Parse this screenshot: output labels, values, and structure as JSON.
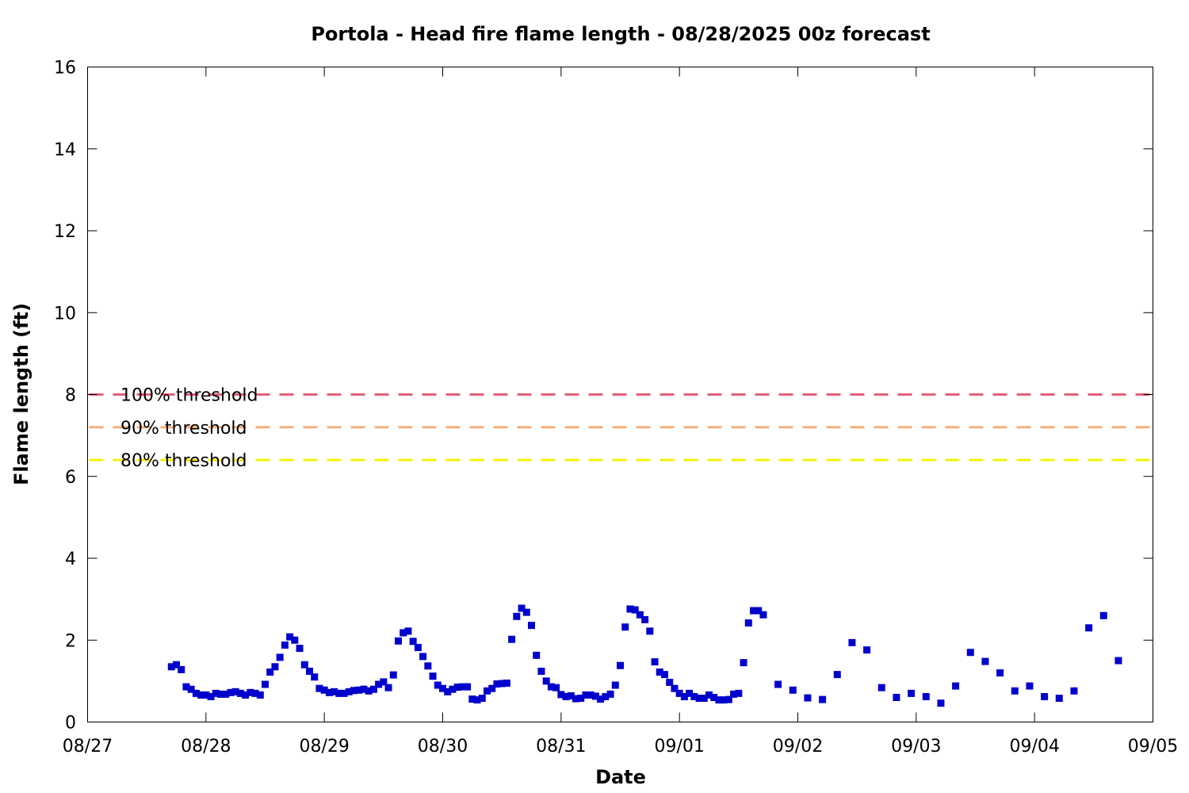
{
  "chart_data": {
    "type": "scatter",
    "title": "Portola - Head fire flame length - 08/28/2025 00z forecast",
    "xlabel": "Date",
    "ylabel": "Flame length (ft)",
    "xlim": [
      "08/27",
      "09/05"
    ],
    "ylim": [
      0,
      16
    ],
    "x_ticks": [
      "08/27",
      "08/28",
      "08/29",
      "08/30",
      "08/31",
      "09/01",
      "09/02",
      "09/03",
      "09/04",
      "09/05"
    ],
    "y_ticks": [
      0,
      2,
      4,
      6,
      8,
      10,
      12,
      14,
      16
    ],
    "grid": false,
    "thresholds": [
      {
        "label": "100% threshold",
        "value": 8.0,
        "color": "#e06278"
      },
      {
        "label": "90% threshold",
        "value": 7.2,
        "color": "#f4b07c"
      },
      {
        "label": "80% threshold",
        "value": 6.4,
        "color": "#f2f20a"
      }
    ],
    "series": [
      {
        "color": "#0000cc",
        "marker": "square",
        "points": [
          [
            "2025-08-27 17:00",
            1.35
          ],
          [
            "2025-08-27 18:00",
            1.4
          ],
          [
            "2025-08-27 19:00",
            1.28
          ],
          [
            "2025-08-27 20:00",
            0.86
          ],
          [
            "2025-08-27 21:00",
            0.8
          ],
          [
            "2025-08-27 22:00",
            0.7
          ],
          [
            "2025-08-27 23:00",
            0.66
          ],
          [
            "2025-08-28 00:00",
            0.66
          ],
          [
            "2025-08-28 01:00",
            0.62
          ],
          [
            "2025-08-28 02:00",
            0.7
          ],
          [
            "2025-08-28 03:00",
            0.68
          ],
          [
            "2025-08-28 04:00",
            0.68
          ],
          [
            "2025-08-28 05:00",
            0.72
          ],
          [
            "2025-08-28 06:00",
            0.74
          ],
          [
            "2025-08-28 07:00",
            0.7
          ],
          [
            "2025-08-28 08:00",
            0.66
          ],
          [
            "2025-08-28 09:00",
            0.72
          ],
          [
            "2025-08-28 10:00",
            0.7
          ],
          [
            "2025-08-28 11:00",
            0.66
          ],
          [
            "2025-08-28 12:00",
            0.92
          ],
          [
            "2025-08-28 13:00",
            1.22
          ],
          [
            "2025-08-28 14:00",
            1.35
          ],
          [
            "2025-08-28 15:00",
            1.58
          ],
          [
            "2025-08-28 16:00",
            1.88
          ],
          [
            "2025-08-28 17:00",
            2.08
          ],
          [
            "2025-08-28 18:00",
            2.0
          ],
          [
            "2025-08-28 19:00",
            1.8
          ],
          [
            "2025-08-28 20:00",
            1.4
          ],
          [
            "2025-08-28 21:00",
            1.24
          ],
          [
            "2025-08-28 22:00",
            1.1
          ],
          [
            "2025-08-28 23:00",
            0.82
          ],
          [
            "2025-08-29 00:00",
            0.78
          ],
          [
            "2025-08-29 01:00",
            0.72
          ],
          [
            "2025-08-29 02:00",
            0.74
          ],
          [
            "2025-08-29 03:00",
            0.7
          ],
          [
            "2025-08-29 04:00",
            0.7
          ],
          [
            "2025-08-29 05:00",
            0.74
          ],
          [
            "2025-08-29 06:00",
            0.77
          ],
          [
            "2025-08-29 07:00",
            0.78
          ],
          [
            "2025-08-29 08:00",
            0.8
          ],
          [
            "2025-08-29 09:00",
            0.76
          ],
          [
            "2025-08-29 10:00",
            0.8
          ],
          [
            "2025-08-29 11:00",
            0.92
          ],
          [
            "2025-08-29 12:00",
            0.98
          ],
          [
            "2025-08-29 13:00",
            0.84
          ],
          [
            "2025-08-29 14:00",
            1.15
          ],
          [
            "2025-08-29 15:00",
            1.98
          ],
          [
            "2025-08-29 16:00",
            2.18
          ],
          [
            "2025-08-29 17:00",
            2.22
          ],
          [
            "2025-08-29 18:00",
            1.97
          ],
          [
            "2025-08-29 19:00",
            1.82
          ],
          [
            "2025-08-29 20:00",
            1.6
          ],
          [
            "2025-08-29 21:00",
            1.37
          ],
          [
            "2025-08-29 22:00",
            1.12
          ],
          [
            "2025-08-29 23:00",
            0.9
          ],
          [
            "2025-08-30 00:00",
            0.82
          ],
          [
            "2025-08-30 01:00",
            0.74
          ],
          [
            "2025-08-30 02:00",
            0.8
          ],
          [
            "2025-08-30 03:00",
            0.85
          ],
          [
            "2025-08-30 04:00",
            0.86
          ],
          [
            "2025-08-30 05:00",
            0.86
          ],
          [
            "2025-08-30 06:00",
            0.56
          ],
          [
            "2025-08-30 07:00",
            0.54
          ],
          [
            "2025-08-30 08:00",
            0.58
          ],
          [
            "2025-08-30 09:00",
            0.76
          ],
          [
            "2025-08-30 10:00",
            0.82
          ],
          [
            "2025-08-30 11:00",
            0.93
          ],
          [
            "2025-08-30 12:00",
            0.94
          ],
          [
            "2025-08-30 13:00",
            0.95
          ],
          [
            "2025-08-30 14:00",
            2.02
          ],
          [
            "2025-08-30 15:00",
            2.58
          ],
          [
            "2025-08-30 16:00",
            2.78
          ],
          [
            "2025-08-30 17:00",
            2.68
          ],
          [
            "2025-08-30 18:00",
            2.36
          ],
          [
            "2025-08-30 19:00",
            1.63
          ],
          [
            "2025-08-30 20:00",
            1.24
          ],
          [
            "2025-08-30 21:00",
            1.0
          ],
          [
            "2025-08-30 22:00",
            0.86
          ],
          [
            "2025-08-30 23:00",
            0.84
          ],
          [
            "2025-08-31 00:00",
            0.67
          ],
          [
            "2025-08-31 01:00",
            0.62
          ],
          [
            "2025-08-31 02:00",
            0.64
          ],
          [
            "2025-08-31 03:00",
            0.57
          ],
          [
            "2025-08-31 04:00",
            0.58
          ],
          [
            "2025-08-31 05:00",
            0.66
          ],
          [
            "2025-08-31 06:00",
            0.66
          ],
          [
            "2025-08-31 07:00",
            0.63
          ],
          [
            "2025-08-31 08:00",
            0.56
          ],
          [
            "2025-08-31 09:00",
            0.62
          ],
          [
            "2025-08-31 10:00",
            0.68
          ],
          [
            "2025-08-31 11:00",
            0.9
          ],
          [
            "2025-08-31 12:00",
            1.38
          ],
          [
            "2025-08-31 13:00",
            2.32
          ],
          [
            "2025-08-31 14:00",
            2.76
          ],
          [
            "2025-08-31 15:00",
            2.74
          ],
          [
            "2025-08-31 16:00",
            2.62
          ],
          [
            "2025-08-31 17:00",
            2.5
          ],
          [
            "2025-08-31 18:00",
            2.22
          ],
          [
            "2025-08-31 19:00",
            1.47
          ],
          [
            "2025-08-31 20:00",
            1.22
          ],
          [
            "2025-08-31 21:00",
            1.16
          ],
          [
            "2025-08-31 22:00",
            0.97
          ],
          [
            "2025-08-31 23:00",
            0.82
          ],
          [
            "2025-09-01 00:00",
            0.7
          ],
          [
            "2025-09-01 01:00",
            0.62
          ],
          [
            "2025-09-01 02:00",
            0.7
          ],
          [
            "2025-09-01 03:00",
            0.62
          ],
          [
            "2025-09-01 04:00",
            0.58
          ],
          [
            "2025-09-01 05:00",
            0.58
          ],
          [
            "2025-09-01 06:00",
            0.66
          ],
          [
            "2025-09-01 07:00",
            0.6
          ],
          [
            "2025-09-01 08:00",
            0.54
          ],
          [
            "2025-09-01 09:00",
            0.54
          ],
          [
            "2025-09-01 10:00",
            0.55
          ],
          [
            "2025-09-01 11:00",
            0.68
          ],
          [
            "2025-09-01 12:00",
            0.7
          ],
          [
            "2025-09-01 13:00",
            1.45
          ],
          [
            "2025-09-01 14:00",
            2.42
          ],
          [
            "2025-09-01 15:00",
            2.72
          ],
          [
            "2025-09-01 16:00",
            2.72
          ],
          [
            "2025-09-01 17:00",
            2.62
          ],
          [
            "2025-09-01 20:00",
            0.92
          ],
          [
            "2025-09-01 23:00",
            0.78
          ],
          [
            "2025-09-02 02:00",
            0.59
          ],
          [
            "2025-09-02 05:00",
            0.55
          ],
          [
            "2025-09-02 08:00",
            1.16
          ],
          [
            "2025-09-02 11:00",
            1.94
          ],
          [
            "2025-09-02 14:00",
            1.76
          ],
          [
            "2025-09-02 17:00",
            0.84
          ],
          [
            "2025-09-02 20:00",
            0.6
          ],
          [
            "2025-09-02 23:00",
            0.7
          ],
          [
            "2025-09-03 02:00",
            0.62
          ],
          [
            "2025-09-03 05:00",
            0.46
          ],
          [
            "2025-09-03 08:00",
            0.88
          ],
          [
            "2025-09-03 11:00",
            1.7
          ],
          [
            "2025-09-03 14:00",
            1.48
          ],
          [
            "2025-09-03 17:00",
            1.2
          ],
          [
            "2025-09-03 20:00",
            0.76
          ],
          [
            "2025-09-03 23:00",
            0.88
          ],
          [
            "2025-09-04 02:00",
            0.62
          ],
          [
            "2025-09-04 05:00",
            0.58
          ],
          [
            "2025-09-04 08:00",
            0.76
          ],
          [
            "2025-09-04 11:00",
            2.3
          ],
          [
            "2025-09-04 14:00",
            2.6
          ],
          [
            "2025-09-04 17:00",
            1.5
          ]
        ]
      }
    ]
  }
}
